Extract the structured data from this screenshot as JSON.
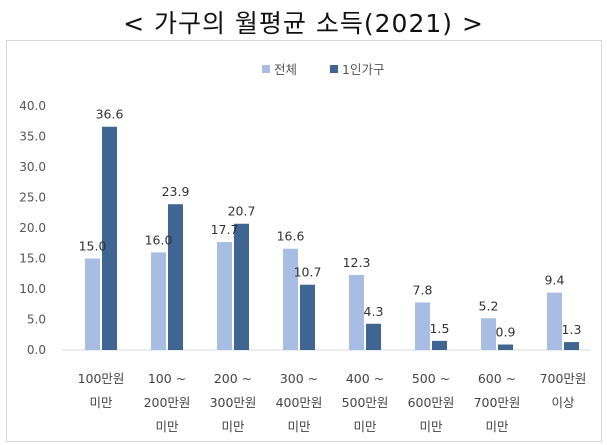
{
  "title": "< 가구의 월평균 소득(2021) >",
  "chart_data": {
    "type": "bar",
    "categories": [
      [
        "100만원",
        "미만"
      ],
      [
        "100 ~",
        "200만원",
        "미만"
      ],
      [
        "200 ~",
        "300만원",
        "미만"
      ],
      [
        "300 ~",
        "400만원",
        "미만"
      ],
      [
        "400 ~",
        "500만원",
        "미만"
      ],
      [
        "500 ~",
        "600만원",
        "미만"
      ],
      [
        "600 ~",
        "700만원",
        "미만"
      ],
      [
        "700만원",
        "이상"
      ]
    ],
    "series": [
      {
        "name": "전체",
        "values": [
          15.0,
          16.0,
          17.7,
          16.6,
          12.3,
          7.8,
          5.2,
          9.4
        ],
        "color": "#a8bde3"
      },
      {
        "name": "1인가구",
        "values": [
          36.6,
          23.9,
          20.7,
          10.7,
          4.3,
          1.5,
          0.9,
          1.3
        ],
        "color": "#3f6692"
      }
    ],
    "ylim": [
      0,
      40
    ],
    "yticks": [
      0,
      5,
      10,
      15,
      20,
      25,
      30,
      35,
      40
    ],
    "legend": "top",
    "grid": false
  }
}
